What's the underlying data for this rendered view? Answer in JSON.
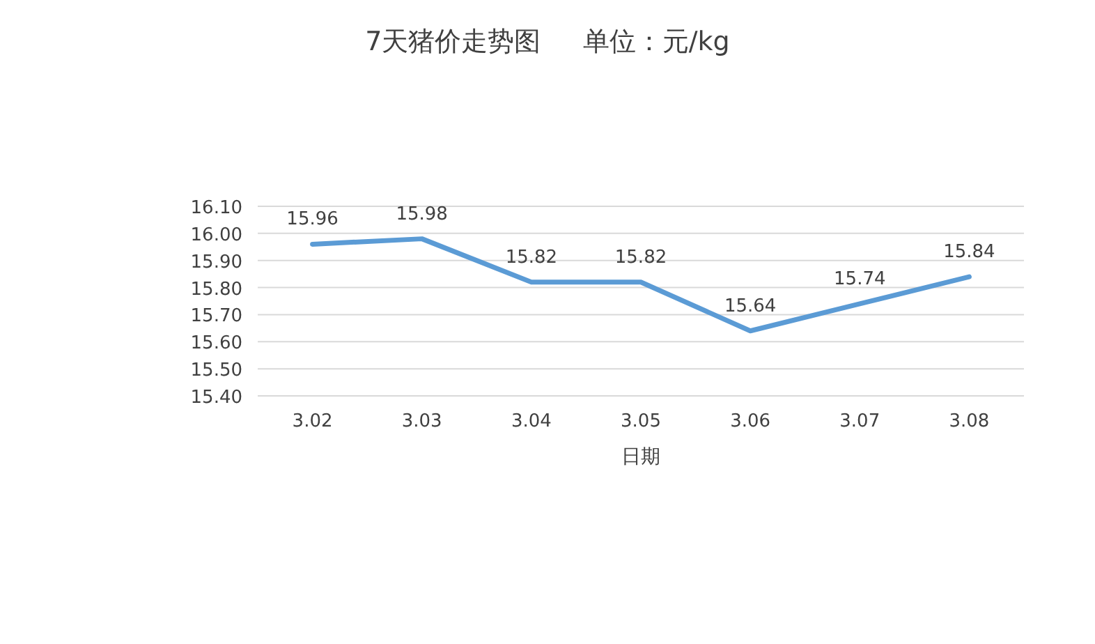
{
  "chart_data": {
    "type": "line",
    "title": "7天猪价走势图     单位：元/kg",
    "xlabel": "日期",
    "categories": [
      "3.02",
      "3.03",
      "3.04",
      "3.05",
      "3.06",
      "3.07",
      "3.08"
    ],
    "values": [
      15.96,
      15.98,
      15.82,
      15.82,
      15.64,
      15.74,
      15.84
    ],
    "color": "#5b9bd5",
    "ylim": [
      15.4,
      16.1
    ],
    "yticks": [
      {
        "value": 15.4,
        "label": "15.40"
      },
      {
        "value": 15.5,
        "label": "15.50"
      },
      {
        "value": 15.6,
        "label": "15.60"
      },
      {
        "value": 15.7,
        "label": "15.70"
      },
      {
        "value": 15.8,
        "label": "15.80"
      },
      {
        "value": 15.9,
        "label": "15.90"
      },
      {
        "value": 16.0,
        "label": "16.00"
      },
      {
        "value": 16.1,
        "label": "16.10"
      }
    ],
    "grid": "y",
    "data_labels": true
  }
}
